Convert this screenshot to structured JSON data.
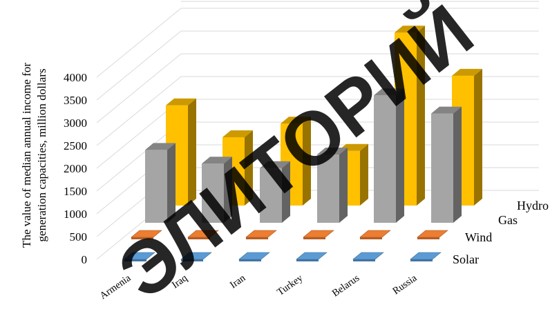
{
  "chart_data": {
    "type": "bar",
    "subtype": "3d-column",
    "ylabel_lines": [
      "The value of  median annual income for",
      "generation capacities, million dollars"
    ],
    "categories": [
      "Armenia",
      "Iraq",
      "Iran",
      "Turkey",
      "Belarus",
      "Russia"
    ],
    "series": [
      {
        "name": "Solar",
        "color": "#5b9bd5",
        "values": [
          5,
          5,
          5,
          5,
          5,
          5
        ]
      },
      {
        "name": "Wind",
        "color": "#ed7d31",
        "values": [
          5,
          5,
          5,
          5,
          5,
          10
        ]
      },
      {
        "name": "Gas",
        "color": "#ffc000",
        "values": [
          2200,
          1500,
          1800,
          1200,
          3800,
          2850
        ]
      },
      {
        "name": "Hydro",
        "color": "#a5a5a5",
        "values": [
          1600,
          1300,
          1200,
          1500,
          2800,
          2400
        ]
      }
    ],
    "yticks": [
      "0",
      "500",
      "1000",
      "1500",
      "2000",
      "2500",
      "3000",
      "3500",
      "4000"
    ],
    "ylim": [
      0,
      4000
    ],
    "grid": true,
    "watermark": "ЭЛИТОРИЙ",
    "watermark_color": "#000000"
  }
}
